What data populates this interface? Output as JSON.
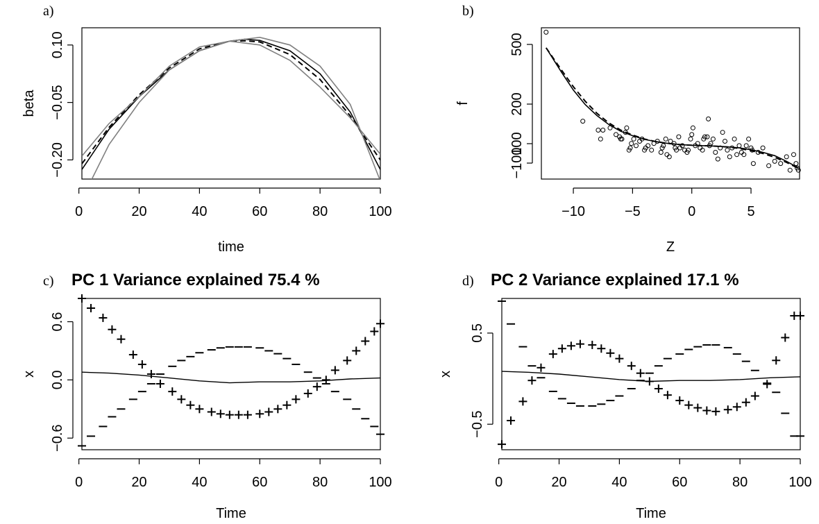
{
  "chart_data": [
    {
      "panel_label": "a)",
      "type": "line",
      "title": "",
      "xlabel": "time",
      "ylabel": "beta",
      "xlim": [
        1,
        100
      ],
      "ylim": [
        -0.25,
        0.145
      ],
      "xticks": [
        0,
        20,
        40,
        60,
        80,
        100
      ],
      "xtick_labels": [
        "0",
        "20",
        "40",
        "60",
        "80",
        "100"
      ],
      "yticks": [
        -0.2,
        -0.05,
        0.1
      ],
      "ytick_labels": [
        "−0.20",
        "−0.05",
        "0.10"
      ],
      "series": [
        {
          "line_style": "solid",
          "color": "#000000",
          "x": [
            1,
            10,
            20,
            30,
            40,
            50,
            55,
            60,
            70,
            80,
            90,
            100
          ],
          "y": [
            -0.225,
            -0.12,
            -0.035,
            0.035,
            0.085,
            0.11,
            0.115,
            0.112,
            0.085,
            0.025,
            -0.075,
            -0.225
          ]
        },
        {
          "line_style": "dashed",
          "color": "#000000",
          "x": [
            1,
            10,
            20,
            30,
            40,
            50,
            55,
            60,
            70,
            80,
            90,
            100
          ],
          "y": [
            -0.21,
            -0.115,
            -0.03,
            0.04,
            0.09,
            0.11,
            0.111,
            0.108,
            0.075,
            0.01,
            -0.085,
            -0.2
          ]
        },
        {
          "line_style": "solid",
          "color": "#808080",
          "x": [
            1,
            10,
            20,
            30,
            40,
            50,
            60,
            70,
            80,
            90,
            100
          ],
          "y": [
            -0.19,
            -0.105,
            -0.035,
            0.045,
            0.095,
            0.11,
            0.1,
            0.06,
            -0.01,
            -0.09,
            -0.185
          ]
        },
        {
          "line_style": "solid",
          "color": "#808080",
          "x": [
            4,
            10,
            20,
            30,
            40,
            50,
            60,
            70,
            80,
            90,
            100
          ],
          "y": [
            -0.255,
            -0.16,
            -0.05,
            0.035,
            0.085,
            0.11,
            0.12,
            0.1,
            0.045,
            -0.055,
            -0.255
          ]
        }
      ]
    },
    {
      "panel_label": "b)",
      "type": "scatter",
      "title": "",
      "xlabel": "Z",
      "ylabel": "f",
      "xlim": [
        -12.7,
        9.1
      ],
      "ylim": [
        -160,
        520
      ],
      "xticks": [
        -10,
        -5,
        0,
        5
      ],
      "xtick_labels": [
        "−10",
        "−5",
        "0",
        "5"
      ],
      "yticks": [
        -100,
        100,
        200,
        500
      ],
      "ytick_labels": [
        "−100",
        "100",
        "200",
        "500"
      ],
      "y_axis_note": "y tick labels as printed on the original axis",
      "points": [
        [
          -12.3,
          500
        ],
        [
          -9.2,
          100
        ],
        [
          -7.9,
          60
        ],
        [
          -7.7,
          20
        ],
        [
          -7.5,
          60
        ],
        [
          -6.9,
          70
        ],
        [
          -6.4,
          40
        ],
        [
          -6.1,
          30
        ],
        [
          -6.0,
          20
        ],
        [
          -5.9,
          20
        ],
        [
          -5.6,
          50
        ],
        [
          -5.5,
          70
        ],
        [
          -5.3,
          -30
        ],
        [
          -5.2,
          -20
        ],
        [
          -5.1,
          0
        ],
        [
          -4.9,
          20
        ],
        [
          -4.7,
          -10
        ],
        [
          -4.4,
          10
        ],
        [
          -4.2,
          20
        ],
        [
          -4.0,
          -30
        ],
        [
          -3.9,
          -20
        ],
        [
          -3.7,
          -10
        ],
        [
          -3.4,
          -30
        ],
        [
          -3.2,
          0
        ],
        [
          -2.9,
          10
        ],
        [
          -2.6,
          -40
        ],
        [
          -2.5,
          -20
        ],
        [
          -2.4,
          -10
        ],
        [
          -2.2,
          20
        ],
        [
          -2.1,
          -50
        ],
        [
          -1.9,
          -60
        ],
        [
          -1.8,
          10
        ],
        [
          -1.5,
          0
        ],
        [
          -1.4,
          -20
        ],
        [
          -1.3,
          -30
        ],
        [
          -1.1,
          30
        ],
        [
          -1.0,
          -20
        ],
        [
          -0.8,
          -10
        ],
        [
          -0.6,
          -30
        ],
        [
          -0.4,
          -40
        ],
        [
          -0.3,
          -30
        ],
        [
          -0.1,
          20
        ],
        [
          0.0,
          40
        ],
        [
          0.1,
          70
        ],
        [
          0.3,
          -10
        ],
        [
          0.5,
          0
        ],
        [
          0.7,
          -20
        ],
        [
          0.9,
          -30
        ],
        [
          1.0,
          20
        ],
        [
          1.1,
          30
        ],
        [
          1.3,
          30
        ],
        [
          1.4,
          110
        ],
        [
          1.5,
          -10
        ],
        [
          1.6,
          0
        ],
        [
          1.8,
          20
        ],
        [
          2.0,
          -40
        ],
        [
          2.2,
          -70
        ],
        [
          2.4,
          -20
        ],
        [
          2.6,
          50
        ],
        [
          2.8,
          10
        ],
        [
          3.0,
          -30
        ],
        [
          3.2,
          -60
        ],
        [
          3.4,
          -20
        ],
        [
          3.6,
          20
        ],
        [
          3.8,
          -50
        ],
        [
          4.0,
          -10
        ],
        [
          4.2,
          -40
        ],
        [
          4.4,
          -50
        ],
        [
          4.6,
          -10
        ],
        [
          4.8,
          20
        ],
        [
          5.0,
          -20
        ],
        [
          5.1,
          -30
        ],
        [
          5.2,
          -90
        ],
        [
          5.6,
          -40
        ],
        [
          6.0,
          -20
        ],
        [
          6.5,
          -100
        ],
        [
          7.0,
          -80
        ],
        [
          7.5,
          -90
        ],
        [
          8.0,
          -60
        ],
        [
          8.3,
          -120
        ],
        [
          8.6,
          -50
        ],
        [
          8.8,
          -90
        ],
        [
          8.9,
          -110
        ],
        [
          9.0,
          -120
        ]
      ],
      "series": [
        {
          "line_style": "solid",
          "color": "#000000",
          "x": [
            -12.3,
            -11,
            -10,
            -9,
            -8,
            -7,
            -6,
            -5,
            -4,
            -3,
            -2,
            -1,
            0,
            1,
            2,
            3,
            4,
            5,
            6,
            7,
            8,
            9
          ],
          "y": [
            430,
            320,
            240,
            175,
            125,
            85,
            55,
            35,
            18,
            8,
            0,
            -5,
            -8,
            -10,
            -12,
            -15,
            -20,
            -28,
            -40,
            -55,
            -80,
            -110
          ]
        },
        {
          "line_style": "dashed",
          "color": "#000000",
          "x": [
            -12.3,
            -11,
            -10,
            -9,
            -8,
            -7,
            -6,
            -5,
            -4,
            -3,
            -2,
            -1,
            0,
            1,
            2,
            3,
            4,
            5,
            6,
            7,
            8,
            9
          ],
          "y": [
            430,
            330,
            255,
            190,
            135,
            92,
            60,
            38,
            20,
            8,
            0,
            -5,
            -8,
            -10,
            -12,
            -16,
            -22,
            -32,
            -45,
            -62,
            -85,
            -112
          ]
        }
      ]
    },
    {
      "panel_label": "c)",
      "type": "line",
      "title": "PC  1  Variance explained  75.4 %",
      "xlabel": "Time",
      "ylabel": "x",
      "xlim": [
        1,
        100
      ],
      "ylim": [
        -0.72,
        0.84
      ],
      "xticks": [
        0,
        20,
        40,
        60,
        80,
        100
      ],
      "xtick_labels": [
        "0",
        "20",
        "40",
        "60",
        "80",
        "100"
      ],
      "yticks": [
        -0.6,
        0.0,
        0.6
      ],
      "ytick_labels": [
        "−0.6",
        "0.0",
        "0.6"
      ],
      "mean_line": {
        "x": [
          1,
          10,
          20,
          30,
          40,
          50,
          60,
          70,
          80,
          90,
          100
        ],
        "y": [
          0.08,
          0.07,
          0.05,
          0.02,
          -0.01,
          -0.03,
          -0.02,
          -0.02,
          -0.01,
          0.01,
          0.02
        ]
      },
      "plus_markers": {
        "x": [
          1,
          4,
          8,
          11,
          14,
          18,
          21,
          24,
          27,
          31,
          34,
          37,
          40,
          44,
          47,
          50,
          53,
          56,
          60,
          63,
          66,
          69,
          72,
          76,
          79,
          82,
          85,
          89,
          92,
          95,
          98,
          100
        ],
        "y": [
          0.84,
          0.74,
          0.64,
          0.52,
          0.42,
          0.26,
          0.16,
          0.06,
          -0.04,
          -0.12,
          -0.2,
          -0.26,
          -0.3,
          -0.33,
          -0.35,
          -0.36,
          -0.36,
          -0.36,
          -0.35,
          -0.33,
          -0.3,
          -0.26,
          -0.2,
          -0.14,
          -0.07,
          0.0,
          0.1,
          0.2,
          0.3,
          0.4,
          0.5,
          0.58
        ]
      },
      "minus_markers": {
        "x": [
          1,
          4,
          8,
          11,
          14,
          18,
          21,
          24,
          27,
          31,
          34,
          37,
          40,
          44,
          47,
          50,
          53,
          56,
          60,
          63,
          66,
          69,
          72,
          76,
          79,
          82,
          85,
          89,
          92,
          95,
          98,
          100
        ],
        "y": [
          -0.68,
          -0.58,
          -0.48,
          -0.38,
          -0.3,
          -0.2,
          -0.12,
          -0.04,
          0.06,
          0.14,
          0.2,
          0.24,
          0.28,
          0.31,
          0.33,
          0.34,
          0.34,
          0.34,
          0.33,
          0.3,
          0.27,
          0.22,
          0.16,
          0.08,
          0.02,
          -0.04,
          -0.12,
          -0.2,
          -0.3,
          -0.4,
          -0.48,
          -0.56
        ]
      }
    },
    {
      "panel_label": "d)",
      "type": "line",
      "title": "PC  2  Variance explained  17.1 %",
      "xlabel": "Time",
      "ylabel": "x",
      "xlim": [
        1,
        100
      ],
      "ylim": [
        -0.78,
        0.88
      ],
      "xticks": [
        0,
        20,
        40,
        60,
        80,
        100
      ],
      "xtick_labels": [
        "0",
        "20",
        "40",
        "60",
        "80",
        "100"
      ],
      "yticks": [
        -0.5,
        0.5
      ],
      "ytick_labels": [
        "−0.5",
        "0.5"
      ],
      "mean_line": {
        "x": [
          1,
          10,
          20,
          30,
          40,
          50,
          60,
          70,
          80,
          90,
          100
        ],
        "y": [
          0.08,
          0.07,
          0.05,
          0.02,
          -0.01,
          -0.03,
          -0.02,
          -0.02,
          -0.01,
          0.01,
          0.02
        ]
      },
      "plus_markers": {
        "x": [
          1,
          4,
          8,
          11,
          14,
          18,
          21,
          24,
          27,
          31,
          34,
          37,
          40,
          44,
          47,
          50,
          53,
          56,
          60,
          63,
          66,
          69,
          72,
          76,
          79,
          82,
          85,
          89,
          92,
          95,
          98,
          100
        ],
        "y": [
          -0.72,
          -0.46,
          -0.25,
          -0.02,
          0.12,
          0.27,
          0.33,
          0.36,
          0.38,
          0.37,
          0.33,
          0.28,
          0.22,
          0.14,
          0.06,
          -0.03,
          -0.11,
          -0.18,
          -0.24,
          -0.29,
          -0.32,
          -0.35,
          -0.36,
          -0.34,
          -0.31,
          -0.26,
          -0.19,
          -0.06,
          0.2,
          0.45,
          0.69,
          0.69
        ]
      },
      "minus_markers": {
        "x": [
          1,
          4,
          8,
          11,
          14,
          18,
          21,
          24,
          27,
          31,
          34,
          37,
          40,
          44,
          47,
          50,
          53,
          56,
          60,
          63,
          66,
          69,
          72,
          76,
          79,
          82,
          85,
          89,
          92,
          95,
          98,
          100
        ],
        "y": [
          0.85,
          0.6,
          0.35,
          0.14,
          0.01,
          -0.14,
          -0.22,
          -0.27,
          -0.3,
          -0.3,
          -0.28,
          -0.24,
          -0.19,
          -0.11,
          -0.02,
          0.06,
          0.14,
          0.22,
          0.27,
          0.32,
          0.35,
          0.37,
          0.37,
          0.34,
          0.27,
          0.19,
          0.09,
          -0.05,
          -0.15,
          -0.38,
          -0.63,
          -0.63
        ]
      }
    }
  ]
}
